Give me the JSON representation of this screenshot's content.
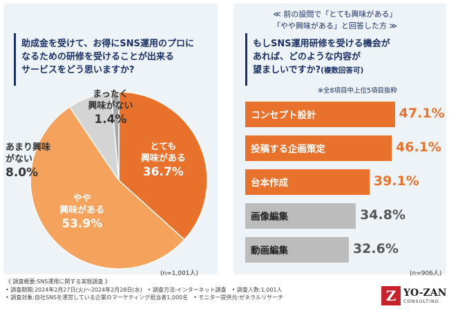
{
  "left": {
    "question": [
      "助成金を受けて、お得にSNS運用のプロに",
      "なるための研修を受けることが出来る",
      "サービスをどう思いますか?"
    ],
    "n": "(n=1,001人)"
  },
  "right": {
    "note": [
      "≪ 前の設問で「とても興味がある」",
      "「やや興味がある」と回答した方 ≫"
    ],
    "question": [
      "もしSNS運用研修を受ける機会が",
      "あれば、どのような内容が"
    ],
    "question_last": "望ましいですか?",
    "question_sub": "(複数回答可)",
    "subnote": "※全8項目中上位5項目抜粋",
    "n": "(n=906人)"
  },
  "footer": [
    "《 調査概要:SNS運用に関する実態調査 》",
    "• 調査期間:2024年2月27日(火)〜2024年2月28日(水)　• 調査方法:インターネット調査　• 調査人数:1,001人",
    "• 調査対象:自社SNSを運営している企業のマーケティング担当者1,000名　• モニター提供元:ゼネラルリサーチ"
  ],
  "logo": {
    "mark": "Z",
    "main": "YO-ZAN",
    "sub": "CONSULTING"
  },
  "chart_data": [
    {
      "type": "pie",
      "title": "助成金を受けて、お得にSNS運用のプロになるための研修を受けることが出来るサービスをどう思いますか?",
      "slices": [
        {
          "label": "とても興味がある",
          "label_lines": [
            "とても",
            "興味がある"
          ],
          "value": 36.7,
          "display": "36.7%",
          "color": "#e8722c",
          "text_color": "#ffffff"
        },
        {
          "label": "やや興味がある",
          "label_lines": [
            "やや",
            "興味がある"
          ],
          "value": 53.9,
          "display": "53.9%",
          "color": "#f5a35c",
          "text_color": "#ffffff"
        },
        {
          "label": "あまり興味がない",
          "label_lines": [
            "あまり興味",
            "がない"
          ],
          "value": 8.0,
          "display": "8.0%",
          "color": "#d4d4d4",
          "text_color": "#333333"
        },
        {
          "label": "まったく興味がない",
          "label_lines": [
            "まったく",
            "興味がない"
          ],
          "value": 1.4,
          "display": "1.4%",
          "color": "#a8a8a8",
          "text_color": "#333333"
        }
      ]
    },
    {
      "type": "bar",
      "orientation": "horizontal",
      "title": "もしSNS運用研修を受ける機会があれば、どのような内容が望ましいですか?(複数回答可)",
      "categories": [
        "コンセプト設計",
        "投稿する企画策定",
        "台本作成",
        "画像編集",
        "動画編集"
      ],
      "values": [
        47.1,
        46.1,
        39.1,
        34.8,
        32.6
      ],
      "display": [
        "47.1%",
        "46.1%",
        "39.1%",
        "34.8%",
        "32.6%"
      ],
      "colors": [
        "#e8722c",
        "#e8722c",
        "#e8722c",
        "#bcbcbc",
        "#bcbcbc"
      ],
      "value_colors": [
        "#e8722c",
        "#e8722c",
        "#e8722c",
        "#555555",
        "#555555"
      ],
      "label_colors": [
        "#ffffff",
        "#ffffff",
        "#ffffff",
        "#222222",
        "#222222"
      ],
      "xlim": [
        0,
        50
      ]
    }
  ]
}
